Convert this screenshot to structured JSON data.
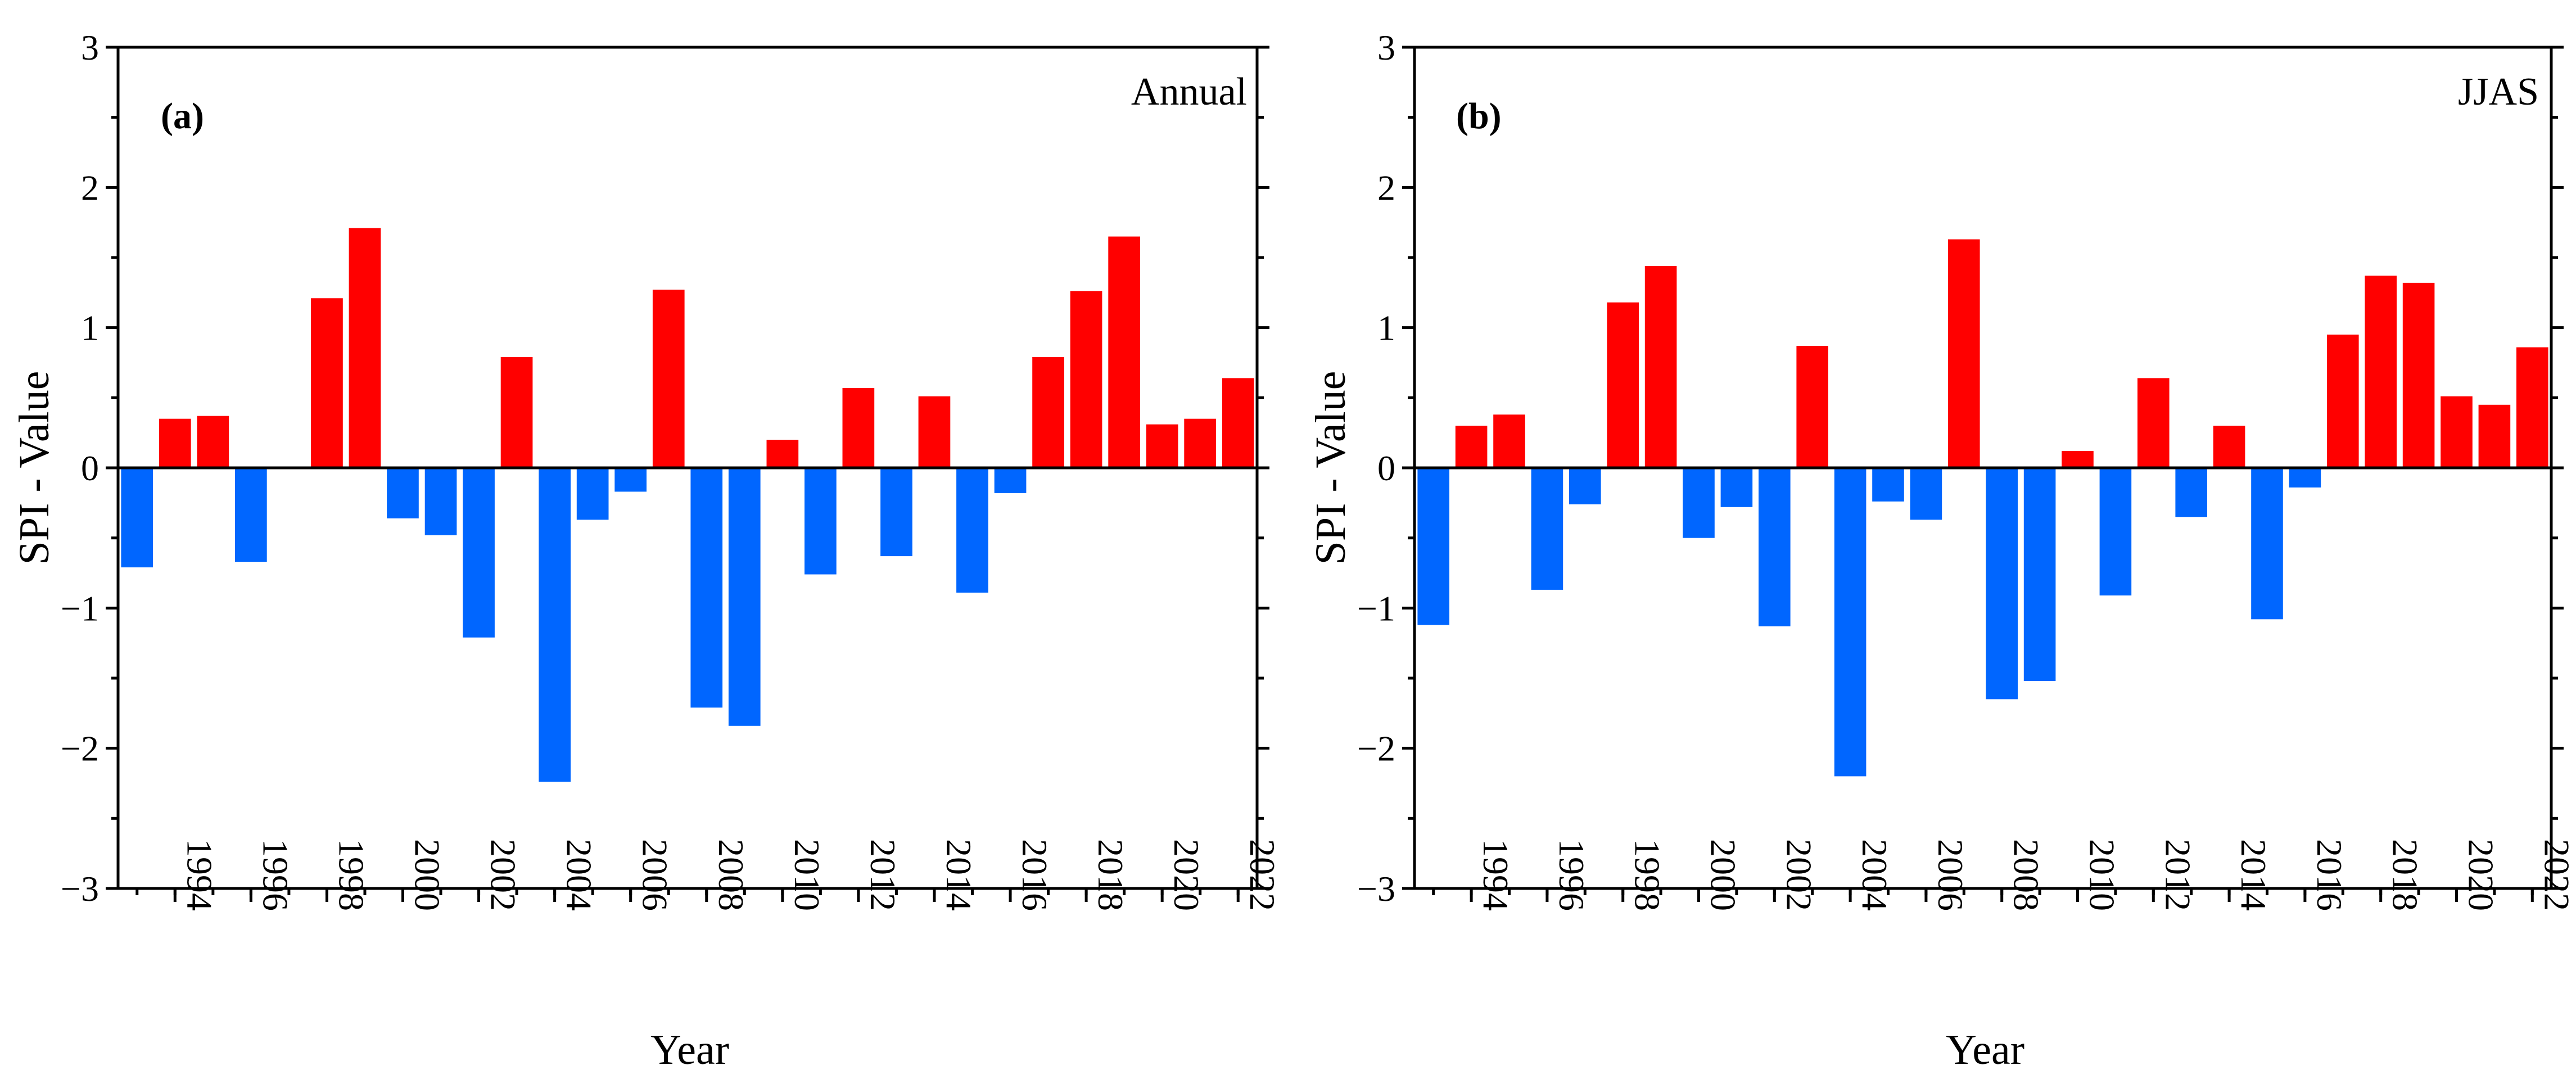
{
  "colors": {
    "positive": "#FF0000",
    "negative": "#0066FF",
    "axis": "#000000"
  },
  "chart_data": [
    {
      "type": "bar",
      "panel_label": "(a)",
      "title": "Annual",
      "xlabel": "Year",
      "ylabel": "SPI - Value",
      "ylim": [
        -3,
        3
      ],
      "yticks": [
        "3",
        "2",
        "1",
        "0",
        "−1",
        "−2",
        "−3"
      ],
      "grid": false,
      "x": [
        1993,
        1994,
        1995,
        1996,
        1997,
        1998,
        1999,
        2000,
        2001,
        2002,
        2003,
        2004,
        2005,
        2006,
        2007,
        2008,
        2009,
        2010,
        2011,
        2012,
        2013,
        2014,
        2015,
        2016,
        2017,
        2018,
        2019,
        2020,
        2021,
        2022
      ],
      "xtick_labels": [
        "1994",
        "1996",
        "1998",
        "2000",
        "2002",
        "2004",
        "2006",
        "2008",
        "2010",
        "2012",
        "2014",
        "2016",
        "2018",
        "2020",
        "2022"
      ],
      "values": [
        -0.71,
        0.35,
        0.37,
        -0.67,
        0.01,
        1.21,
        1.71,
        -0.36,
        -0.48,
        -1.21,
        0.79,
        -2.24,
        -0.37,
        -0.17,
        1.27,
        -1.71,
        -1.84,
        0.2,
        -0.76,
        0.57,
        -0.63,
        0.51,
        -0.89,
        -0.18,
        0.79,
        1.26,
        1.65,
        0.31,
        0.35,
        0.64
      ]
    },
    {
      "type": "bar",
      "panel_label": "(b)",
      "title": "JJAS",
      "xlabel": "Year",
      "ylabel": "SPI - Value",
      "ylim": [
        -3,
        3
      ],
      "yticks": [
        "3",
        "2",
        "1",
        "0",
        "−1",
        "−2",
        "−3"
      ],
      "grid": false,
      "x": [
        1993,
        1994,
        1995,
        1996,
        1997,
        1998,
        1999,
        2000,
        2001,
        2002,
        2003,
        2004,
        2005,
        2006,
        2007,
        2008,
        2009,
        2010,
        2011,
        2012,
        2013,
        2014,
        2015,
        2016,
        2017,
        2018,
        2019,
        2020,
        2021,
        2022
      ],
      "xtick_labels": [
        "1994",
        "1996",
        "1998",
        "2000",
        "2002",
        "2004",
        "2006",
        "2008",
        "2010",
        "2012",
        "2014",
        "2016",
        "2018",
        "2020",
        "2022"
      ],
      "values": [
        -1.12,
        0.3,
        0.38,
        -0.87,
        -0.26,
        1.18,
        1.44,
        -0.5,
        -0.28,
        -1.13,
        0.87,
        -2.2,
        -0.24,
        -0.37,
        1.63,
        -1.65,
        -1.52,
        0.12,
        -0.91,
        0.64,
        -0.35,
        0.3,
        -1.08,
        -0.14,
        0.95,
        1.37,
        1.32,
        0.51,
        0.45,
        0.86
      ]
    }
  ]
}
